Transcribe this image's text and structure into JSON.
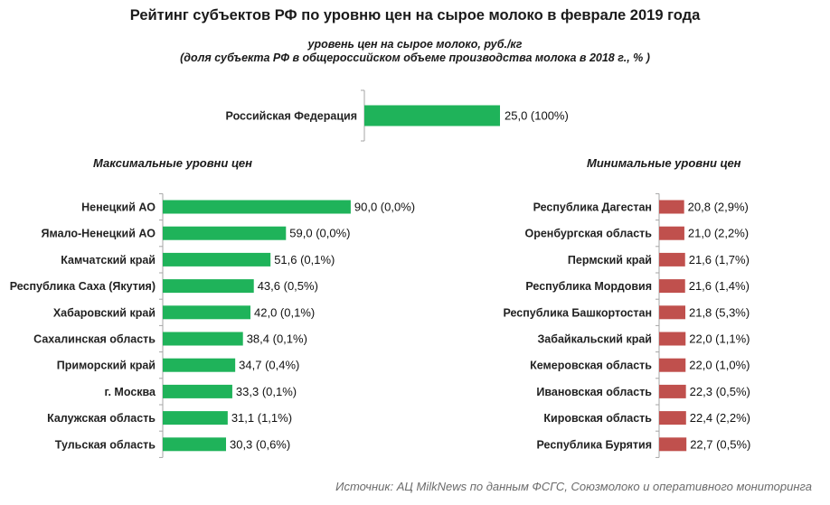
{
  "chart_data": {
    "type": "bar",
    "orientation": "horizontal",
    "title": "Рейтинг субъектов РФ по уровню цен на сырое молоко в феврале 2019 года",
    "subtitle_1": "уровень цен на сырое молоко, руб./кг",
    "subtitle_2": "(доля субъекта РФ в общероссийском объеме производства молока в 2018 г., % )",
    "source": "Источник:  АЦ MilkNews по данным ФСГС, Союзмолоко и оперативного мониторинга",
    "colors": {
      "green": "#1fb35a",
      "red": "#c0504d",
      "axis": "#a6a6a6"
    },
    "national": {
      "category": "Российская Федерация",
      "value": 25.0,
      "label": "25,0 (100%)"
    },
    "max_panel": {
      "title": "Максимальные уровни цен",
      "categories": [
        "Ненецкий АО",
        "Ямало-Ненецкий АО",
        "Камчатский край",
        "Республика Саха (Якутия)",
        "Хабаровский край",
        "Сахалинская область",
        "Приморский край",
        "г. Москва",
        "Калужская область",
        "Тульская область"
      ],
      "values": [
        90.0,
        59.0,
        51.6,
        43.6,
        42.0,
        38.4,
        34.7,
        33.3,
        31.1,
        30.3
      ],
      "labels": [
        "90,0 (0,0%)",
        "59,0 (0,0%)",
        "51,6 (0,1%)",
        "43,6 (0,5%)",
        "42,0 (0,1%)",
        "38,4 (0,1%)",
        "34,7 (0,4%)",
        "33,3 (0,1%)",
        "31,1 (1,1%)",
        "30,3 (0,6%)"
      ]
    },
    "min_panel": {
      "title": "Минимальные уровни цен",
      "categories": [
        "Республика Дагестан",
        "Оренбургская область",
        "Пермский край",
        "Республика Мордовия",
        "Республика Башкортостан",
        "Забайкальский край",
        "Кемеровская область",
        "Ивановская область",
        "Кировская область",
        "Республика Бурятия"
      ],
      "values": [
        20.8,
        21.0,
        21.6,
        21.6,
        21.8,
        22.0,
        22.0,
        22.3,
        22.4,
        22.7
      ],
      "labels": [
        "20,8 (2,9%)",
        "21,0 (2,2%)",
        "21,6 (1,7%)",
        "21,6 (1,4%)",
        "21,8 (5,3%)",
        "22,0 (1,1%)",
        "22,0 (1,0%)",
        "22,3 (0,5%)",
        "22,4 (2,2%)",
        "22,7 (0,5%)"
      ]
    }
  }
}
